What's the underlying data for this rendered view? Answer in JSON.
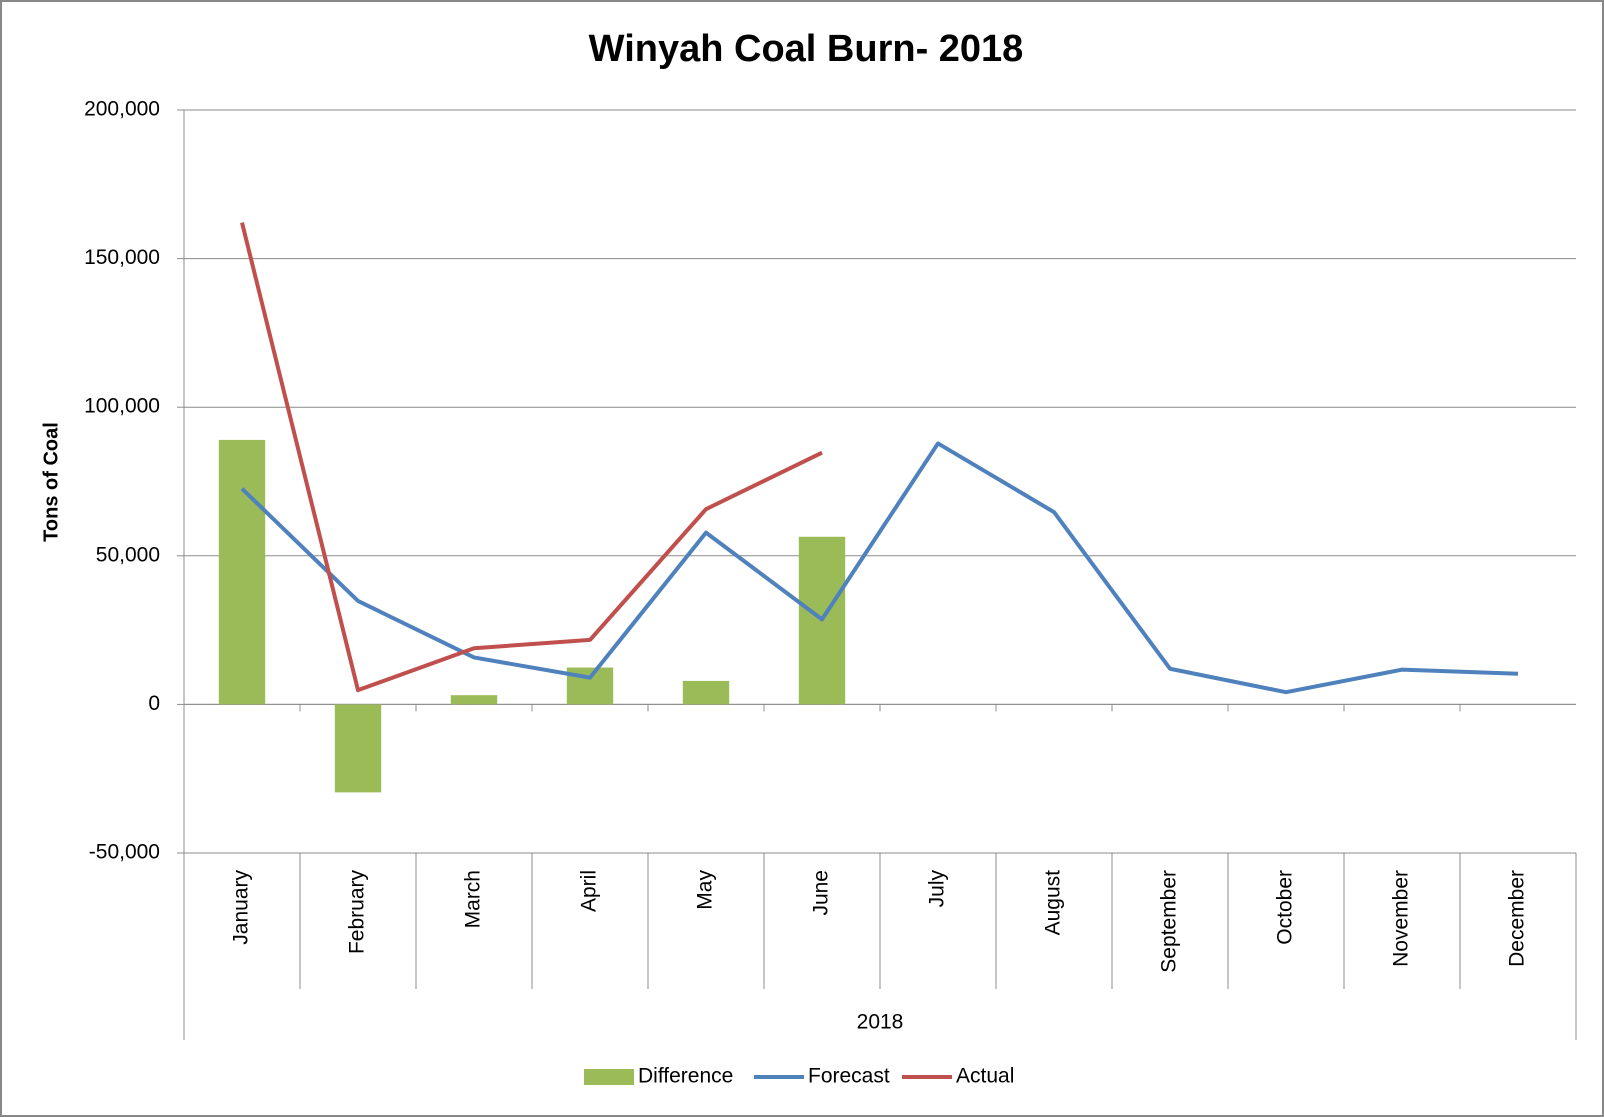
{
  "chart_data": {
    "type": "bar-line",
    "title": "Winyah Coal Burn- 2018",
    "y_label": "Tons of Coal",
    "group_label": "2018",
    "categories": [
      "January",
      "February",
      "March",
      "April",
      "May",
      "June",
      "July",
      "August",
      "September",
      "October",
      "November",
      "December"
    ],
    "series": [
      {
        "name": "Difference",
        "type": "bar",
        "color": "#9bbb59",
        "values": [
          89000,
          -29600,
          3100,
          12400,
          7900,
          56400,
          null,
          null,
          null,
          null,
          null,
          null
        ]
      },
      {
        "name": "Forecast",
        "type": "line",
        "color": "#4f81bd",
        "values": [
          72600,
          34800,
          15800,
          9000,
          57800,
          28600,
          87800,
          64700,
          12000,
          4100,
          11700,
          10300
        ]
      },
      {
        "name": "Actual",
        "type": "line",
        "color": "#c0504d",
        "values": [
          162100,
          4800,
          18900,
          21700,
          65700,
          84700,
          null,
          null,
          null,
          null,
          null,
          null
        ]
      }
    ],
    "ylim": [
      -50000,
      200000
    ],
    "yticks": [
      {
        "value": -50000,
        "label": "-50,000"
      },
      0,
      {
        "value": 50000,
        "label": "50,000"
      },
      {
        "value": 100000,
        "label": "100,000"
      },
      {
        "value": 150000,
        "label": "150,000"
      },
      {
        "value": 200000,
        "label": "200,000"
      }
    ],
    "grid": true,
    "legend": "bottom"
  }
}
